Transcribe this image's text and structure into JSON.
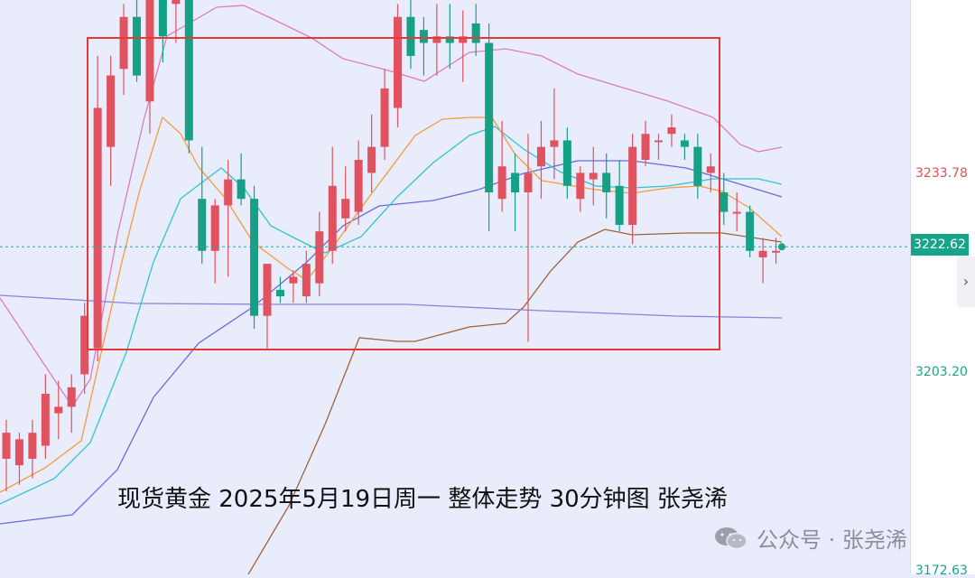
{
  "chart_data": {
    "type": "candlestick",
    "caption": "现货黄金 2025年5月19日周一 整体走势 30分钟图 张尧浠",
    "price_axis": {
      "labels": [
        {
          "value": 3233.78,
          "text": "3233.78",
          "color": "#d9534f"
        },
        {
          "value": 3203.2,
          "text": "3203.20",
          "color": "#17a589"
        },
        {
          "value": 3172.63,
          "text": "3172.63",
          "color": "#17a589"
        }
      ],
      "current": {
        "value": 3222.62,
        "text": "3222.62"
      }
    },
    "colors": {
      "up": "#e05260",
      "down": "#16a086",
      "box": "#e53935",
      "ma_fast": "#f39c3b",
      "ma_mid": "#2ec4d6",
      "ma_slow": "#6a6ae0",
      "ma_long": "#8c84d9",
      "boll_upper": "#e07ac0",
      "boll_lower": "#a0623a"
    },
    "candles": [
      {
        "o": 3190,
        "h": 3196,
        "l": 3185,
        "c": 3194
      },
      {
        "o": 3189,
        "h": 3194,
        "l": 3186,
        "c": 3193
      },
      {
        "o": 3190,
        "h": 3196,
        "l": 3187,
        "c": 3194
      },
      {
        "o": 3192,
        "h": 3203,
        "l": 3190,
        "c": 3200
      },
      {
        "o": 3197,
        "h": 3202,
        "l": 3193,
        "c": 3198
      },
      {
        "o": 3198,
        "h": 3203,
        "l": 3194,
        "c": 3201
      },
      {
        "o": 3203,
        "h": 3214,
        "l": 3200,
        "c": 3212
      },
      {
        "o": 3207,
        "h": 3252,
        "l": 3205,
        "c": 3244
      },
      {
        "o": 3238,
        "h": 3252,
        "l": 3232,
        "c": 3249
      },
      {
        "o": 3250,
        "h": 3260,
        "l": 3246,
        "c": 3258
      },
      {
        "o": 3258,
        "h": 3262,
        "l": 3248,
        "c": 3249
      },
      {
        "o": 3245,
        "h": 3264,
        "l": 3240,
        "c": 3262
      },
      {
        "o": 3265,
        "h": 3268,
        "l": 3251,
        "c": 3255
      },
      {
        "o": 3260,
        "h": 3266,
        "l": 3254,
        "c": 3261
      },
      {
        "o": 3261,
        "h": 3264,
        "l": 3237,
        "c": 3239
      },
      {
        "o": 3230,
        "h": 3238,
        "l": 3220,
        "c": 3222
      },
      {
        "o": 3222,
        "h": 3230,
        "l": 3217,
        "c": 3229
      },
      {
        "o": 3229,
        "h": 3236,
        "l": 3218,
        "c": 3233
      },
      {
        "o": 3233,
        "h": 3237,
        "l": 3229,
        "c": 3230
      },
      {
        "o": 3230,
        "h": 3232,
        "l": 3210,
        "c": 3212
      },
      {
        "o": 3212,
        "h": 3220,
        "l": 3207,
        "c": 3220
      },
      {
        "o": 3216,
        "h": 3218,
        "l": 3214,
        "c": 3215
      },
      {
        "o": 3217,
        "h": 3219,
        "l": 3214,
        "c": 3218
      },
      {
        "o": 3215,
        "h": 3222,
        "l": 3214,
        "c": 3220
      },
      {
        "o": 3217,
        "h": 3228,
        "l": 3215,
        "c": 3225
      },
      {
        "o": 3222,
        "h": 3238,
        "l": 3220,
        "c": 3232
      },
      {
        "o": 3227,
        "h": 3235,
        "l": 3225,
        "c": 3230
      },
      {
        "o": 3228,
        "h": 3239,
        "l": 3226,
        "c": 3236
      },
      {
        "o": 3234,
        "h": 3243,
        "l": 3231,
        "c": 3238
      },
      {
        "o": 3238,
        "h": 3250,
        "l": 3236,
        "c": 3247
      },
      {
        "o": 3244,
        "h": 3260,
        "l": 3241,
        "c": 3258
      },
      {
        "o": 3258,
        "h": 3263,
        "l": 3250,
        "c": 3252
      },
      {
        "o": 3256,
        "h": 3258,
        "l": 3249,
        "c": 3254
      },
      {
        "o": 3254,
        "h": 3260,
        "l": 3249,
        "c": 3255
      },
      {
        "o": 3255,
        "h": 3260,
        "l": 3250,
        "c": 3254
      },
      {
        "o": 3254,
        "h": 3259,
        "l": 3248,
        "c": 3255
      },
      {
        "o": 3257,
        "h": 3260,
        "l": 3252,
        "c": 3254
      },
      {
        "o": 3254,
        "h": 3257,
        "l": 3225,
        "c": 3231
      },
      {
        "o": 3230,
        "h": 3242,
        "l": 3228,
        "c": 3235
      },
      {
        "o": 3234,
        "h": 3237,
        "l": 3225,
        "c": 3231
      },
      {
        "o": 3231,
        "h": 3240,
        "l": 3208,
        "c": 3234
      },
      {
        "o": 3235,
        "h": 3242,
        "l": 3230,
        "c": 3238
      },
      {
        "o": 3238,
        "h": 3247,
        "l": 3233,
        "c": 3239
      },
      {
        "o": 3239,
        "h": 3241,
        "l": 3230,
        "c": 3232
      },
      {
        "o": 3230,
        "h": 3235,
        "l": 3228,
        "c": 3234
      },
      {
        "o": 3233,
        "h": 3238,
        "l": 3229,
        "c": 3234
      },
      {
        "o": 3234,
        "h": 3237,
        "l": 3227,
        "c": 3231
      },
      {
        "o": 3232,
        "h": 3236,
        "l": 3225,
        "c": 3226
      },
      {
        "o": 3226,
        "h": 3240,
        "l": 3223,
        "c": 3238
      },
      {
        "o": 3236,
        "h": 3242,
        "l": 3235,
        "c": 3240
      },
      {
        "o": 3239,
        "h": 3240,
        "l": 3236,
        "c": 3239
      },
      {
        "o": 3240,
        "h": 3243,
        "l": 3238,
        "c": 3241
      },
      {
        "o": 3239,
        "h": 3240,
        "l": 3236,
        "c": 3238
      },
      {
        "o": 3238,
        "h": 3240,
        "l": 3230,
        "c": 3232
      },
      {
        "o": 3234,
        "h": 3237,
        "l": 3231,
        "c": 3235
      },
      {
        "o": 3231,
        "h": 3234,
        "l": 3226,
        "c": 3228
      },
      {
        "o": 3228,
        "h": 3231,
        "l": 3225,
        "c": 3228
      },
      {
        "o": 3228,
        "h": 3229,
        "l": 3221,
        "c": 3222
      },
      {
        "o": 3221,
        "h": 3224,
        "l": 3217,
        "c": 3222
      },
      {
        "o": 3222,
        "h": 3224,
        "l": 3220,
        "c": 3222
      }
    ]
  },
  "watermark": {
    "text": "公众号 · 张尧浠",
    "icon": "wechat-icon"
  }
}
